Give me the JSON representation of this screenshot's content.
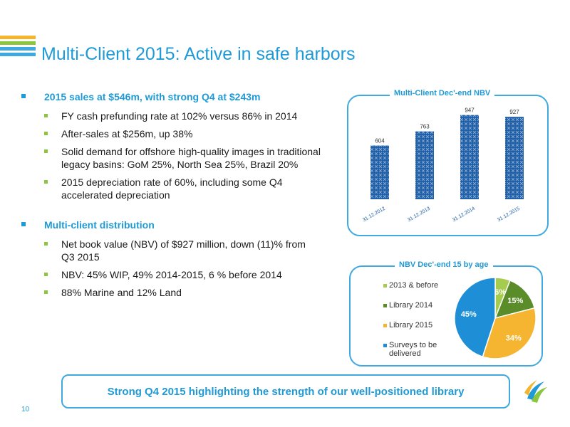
{
  "title": "Multi-Client 2015: Active in safe harbors",
  "bullets": [
    {
      "text": "2015 sales at $546m, with strong Q4 at $243m",
      "sub": [
        "FY cash prefunding rate at 102% versus 86% in 2014",
        "After-sales at $256m, up 38%",
        "Solid demand for offshore high-quality images in traditional legacy basins: GoM 25%, North Sea 25%, Brazil 20%",
        "2015 depreciation rate of 60%, including some Q4 accelerated depreciation"
      ]
    },
    {
      "text": "Multi-client distribution",
      "sub": [
        "Net book value (NBV) of $927 million, down (11)% from Q3 2015",
        "NBV: 45% WIP, 49% 2014-2015, 6 % before 2014",
        "88% Marine and 12% Land"
      ]
    }
  ],
  "banner": "Strong Q4 2015 highlighting the strength of our well-positioned library",
  "page_number": "10",
  "colors": {
    "accent": "#1f9ad6",
    "bullet_green": "#8cc63f",
    "bar_fill": "#1f5fa8"
  },
  "chart_data": [
    {
      "type": "bar",
      "title": "Multi-Client Dec'-end NBV",
      "categories": [
        "31.12.2012",
        "31.12.2013",
        "31.12.2014",
        "31.12.2015"
      ],
      "values": [
        604,
        763,
        947,
        927
      ],
      "data_labels": [
        "604",
        "763",
        "947",
        "927"
      ],
      "ylim": [
        0,
        1000
      ],
      "grid": false,
      "legend": "none"
    },
    {
      "type": "pie",
      "title": "NBV Dec'-end 15 by age",
      "labels": [
        "2013 & before",
        "Library 2014",
        "Library 2015",
        "Surveys to be delivered"
      ],
      "values": [
        6,
        15,
        34,
        45
      ],
      "data_labels": [
        "6%",
        "15%",
        "34%",
        "45%"
      ],
      "colors": [
        "#a6cc4f",
        "#5b8c2a",
        "#f5b530",
        "#1e8fd6"
      ],
      "legend": "left"
    }
  ]
}
